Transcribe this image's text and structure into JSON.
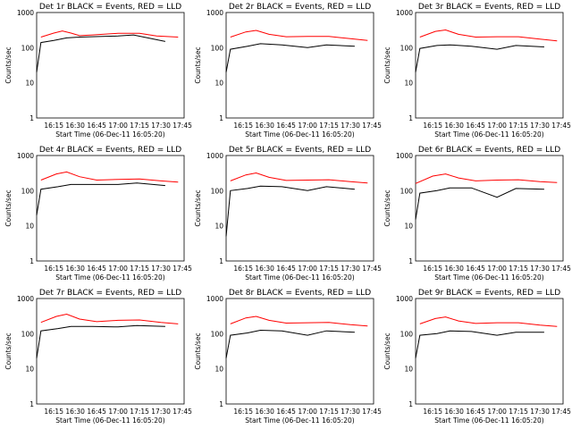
{
  "figure": {
    "background": "#ffffff"
  },
  "chart_data": [
    {
      "type": "line",
      "title": "Det 1r BLACK = Events, RED = LLD",
      "xlabel": "Start Time (06-Dec-11 16:05:20)",
      "ylabel": "Counts/sec",
      "x_ticks": [
        "16:15",
        "16:30",
        "16:45",
        "17:00",
        "17:15",
        "17:30",
        "17:45"
      ],
      "y_ticks": [
        "1",
        "10",
        "100",
        "1000"
      ],
      "ylim": [
        1,
        1000
      ],
      "yscale": "log",
      "series": [
        {
          "color": "#ff0000",
          "points": [
            [
              16.1,
              200
            ],
            [
              16.25,
              260
            ],
            [
              16.35,
              300
            ],
            [
              16.45,
              260
            ],
            [
              16.55,
              220
            ],
            [
              16.7,
              230
            ],
            [
              17.0,
              255
            ],
            [
              17.25,
              255
            ],
            [
              17.45,
              215
            ],
            [
              17.7,
              200
            ]
          ]
        },
        {
          "color": "#000000",
          "points": [
            [
              16.05,
              20
            ],
            [
              16.1,
              140
            ],
            [
              16.25,
              160
            ],
            [
              16.4,
              190
            ],
            [
              16.55,
              200
            ],
            [
              17.0,
              215
            ],
            [
              17.18,
              230
            ],
            [
              17.55,
              150
            ]
          ]
        }
      ]
    },
    {
      "type": "line",
      "title": "Det 2r BLACK = Events, RED = LLD",
      "xlabel": "Start Time (06-Dec-11 16:05:20)",
      "ylabel": "Counts/sec",
      "x_ticks": [
        "16:15",
        "16:30",
        "16:45",
        "17:00",
        "17:15",
        "17:30",
        "17:45"
      ],
      "y_ticks": [
        "1",
        "10",
        "100",
        "1000"
      ],
      "ylim": [
        1,
        1000
      ],
      "yscale": "log",
      "series": [
        {
          "color": "#ff0000",
          "points": [
            [
              16.1,
              200
            ],
            [
              16.28,
              280
            ],
            [
              16.4,
              310
            ],
            [
              16.55,
              240
            ],
            [
              16.75,
              205
            ],
            [
              17.0,
              210
            ],
            [
              17.25,
              210
            ],
            [
              17.5,
              180
            ],
            [
              17.7,
              160
            ]
          ]
        },
        {
          "color": "#000000",
          "points": [
            [
              16.05,
              20
            ],
            [
              16.1,
              90
            ],
            [
              16.3,
              110
            ],
            [
              16.45,
              130
            ],
            [
              16.7,
              120
            ],
            [
              17.0,
              100
            ],
            [
              17.22,
              120
            ],
            [
              17.55,
              110
            ]
          ]
        }
      ]
    },
    {
      "type": "line",
      "title": "Det 3r BLACK = Events, RED = LLD",
      "xlabel": "Start Time (06-Dec-11 16:05:20)",
      "ylabel": "Counts/sec",
      "x_ticks": [
        "16:15",
        "16:30",
        "16:45",
        "17:00",
        "17:15",
        "17:30",
        "17:45"
      ],
      "y_ticks": [
        "1",
        "10",
        "100",
        "1000"
      ],
      "ylim": [
        1,
        1000
      ],
      "yscale": "log",
      "series": [
        {
          "color": "#ff0000",
          "points": [
            [
              16.1,
              200
            ],
            [
              16.28,
              290
            ],
            [
              16.4,
              320
            ],
            [
              16.55,
              240
            ],
            [
              16.75,
              200
            ],
            [
              17.0,
              205
            ],
            [
              17.25,
              205
            ],
            [
              17.5,
              175
            ],
            [
              17.7,
              155
            ]
          ]
        },
        {
          "color": "#000000",
          "points": [
            [
              16.05,
              20
            ],
            [
              16.1,
              95
            ],
            [
              16.3,
              115
            ],
            [
              16.45,
              120
            ],
            [
              16.7,
              110
            ],
            [
              17.0,
              90
            ],
            [
              17.22,
              115
            ],
            [
              17.55,
              105
            ]
          ]
        }
      ]
    },
    {
      "type": "line",
      "title": "Det 4r BLACK = Events, RED = LLD",
      "xlabel": "Start Time (06-Dec-11 16:05:20)",
      "ylabel": "Counts/sec",
      "x_ticks": [
        "16:15",
        "16:30",
        "16:45",
        "17:00",
        "17:15",
        "17:30",
        "17:45"
      ],
      "y_ticks": [
        "1",
        "10",
        "100",
        "1000"
      ],
      "ylim": [
        1,
        1000
      ],
      "yscale": "log",
      "series": [
        {
          "color": "#ff0000",
          "points": [
            [
              16.1,
              200
            ],
            [
              16.28,
              300
            ],
            [
              16.4,
              340
            ],
            [
              16.55,
              250
            ],
            [
              16.75,
              200
            ],
            [
              17.0,
              210
            ],
            [
              17.25,
              215
            ],
            [
              17.5,
              190
            ],
            [
              17.7,
              175
            ]
          ]
        },
        {
          "color": "#000000",
          "points": [
            [
              16.05,
              20
            ],
            [
              16.1,
              110
            ],
            [
              16.3,
              130
            ],
            [
              16.45,
              150
            ],
            [
              16.7,
              150
            ],
            [
              17.0,
              150
            ],
            [
              17.22,
              165
            ],
            [
              17.55,
              140
            ]
          ]
        }
      ]
    },
    {
      "type": "line",
      "title": "Det 5r BLACK = Events, RED = LLD",
      "xlabel": "Start Time (06-Dec-11 16:05:20)",
      "ylabel": "Counts/sec",
      "x_ticks": [
        "16:15",
        "16:30",
        "16:45",
        "17:00",
        "17:15",
        "17:30",
        "17:45"
      ],
      "y_ticks": [
        "1",
        "10",
        "100",
        "1000"
      ],
      "ylim": [
        1,
        1000
      ],
      "yscale": "log",
      "series": [
        {
          "color": "#ff0000",
          "points": [
            [
              16.1,
              190
            ],
            [
              16.28,
              280
            ],
            [
              16.4,
              320
            ],
            [
              16.55,
              240
            ],
            [
              16.75,
              195
            ],
            [
              17.0,
              200
            ],
            [
              17.25,
              205
            ],
            [
              17.5,
              180
            ],
            [
              17.7,
              165
            ]
          ]
        },
        {
          "color": "#000000",
          "points": [
            [
              16.05,
              5
            ],
            [
              16.1,
              100
            ],
            [
              16.3,
              115
            ],
            [
              16.45,
              135
            ],
            [
              16.7,
              130
            ],
            [
              17.0,
              100
            ],
            [
              17.22,
              130
            ],
            [
              17.55,
              110
            ]
          ]
        }
      ]
    },
    {
      "type": "line",
      "title": "Det 6r BLACK = Events, RED = LLD",
      "xlabel": "Start Time (06-Dec-11 16:05:20)",
      "ylabel": "Counts/sec",
      "x_ticks": [
        "16:15",
        "16:30",
        "16:45",
        "17:00",
        "17:15",
        "17:30",
        "17:45"
      ],
      "y_ticks": [
        "1",
        "10",
        "100",
        "1000"
      ],
      "ylim": [
        1,
        1000
      ],
      "yscale": "log",
      "series": [
        {
          "color": "#ff0000",
          "points": [
            [
              16.05,
              160
            ],
            [
              16.25,
              260
            ],
            [
              16.4,
              300
            ],
            [
              16.55,
              230
            ],
            [
              16.75,
              190
            ],
            [
              17.0,
              200
            ],
            [
              17.25,
              205
            ],
            [
              17.5,
              180
            ],
            [
              17.7,
              170
            ]
          ]
        },
        {
          "color": "#000000",
          "points": [
            [
              16.05,
              15
            ],
            [
              16.1,
              85
            ],
            [
              16.3,
              100
            ],
            [
              16.45,
              120
            ],
            [
              16.7,
              120
            ],
            [
              17.0,
              65
            ],
            [
              17.22,
              115
            ],
            [
              17.55,
              110
            ]
          ]
        }
      ]
    },
    {
      "type": "line",
      "title": "Det 7r BLACK = Events, RED = LLD",
      "xlabel": "Start Time (06-Dec-11 16:05:20)",
      "ylabel": "Counts/sec",
      "x_ticks": [
        "16:15",
        "16:30",
        "16:45",
        "17:00",
        "17:15",
        "17:30",
        "17:45"
      ],
      "y_ticks": [
        "1",
        "10",
        "100",
        "1000"
      ],
      "ylim": [
        1,
        1000
      ],
      "yscale": "log",
      "series": [
        {
          "color": "#ff0000",
          "points": [
            [
              16.1,
              210
            ],
            [
              16.28,
              310
            ],
            [
              16.4,
              360
            ],
            [
              16.55,
              260
            ],
            [
              16.75,
              220
            ],
            [
              17.0,
              240
            ],
            [
              17.25,
              245
            ],
            [
              17.5,
              210
            ],
            [
              17.7,
              190
            ]
          ]
        },
        {
          "color": "#000000",
          "points": [
            [
              16.05,
              20
            ],
            [
              16.1,
              120
            ],
            [
              16.3,
              140
            ],
            [
              16.45,
              160
            ],
            [
              16.7,
              160
            ],
            [
              17.0,
              155
            ],
            [
              17.22,
              170
            ],
            [
              17.55,
              160
            ]
          ]
        }
      ]
    },
    {
      "type": "line",
      "title": "Det 8r BLACK = Events, RED = LLD",
      "xlabel": "Start Time (06-Dec-11 16:05:20)",
      "ylabel": "Counts/sec",
      "x_ticks": [
        "16:15",
        "16:30",
        "16:45",
        "17:00",
        "17:15",
        "17:30",
        "17:45"
      ],
      "y_ticks": [
        "1",
        "10",
        "100",
        "1000"
      ],
      "ylim": [
        1,
        1000
      ],
      "yscale": "log",
      "series": [
        {
          "color": "#ff0000",
          "points": [
            [
              16.1,
              190
            ],
            [
              16.28,
              280
            ],
            [
              16.4,
              310
            ],
            [
              16.55,
              240
            ],
            [
              16.75,
              200
            ],
            [
              17.0,
              205
            ],
            [
              17.25,
              210
            ],
            [
              17.5,
              180
            ],
            [
              17.7,
              165
            ]
          ]
        },
        {
          "color": "#000000",
          "points": [
            [
              16.05,
              20
            ],
            [
              16.1,
              90
            ],
            [
              16.3,
              105
            ],
            [
              16.45,
              125
            ],
            [
              16.7,
              120
            ],
            [
              17.0,
              90
            ],
            [
              17.22,
              120
            ],
            [
              17.55,
              110
            ]
          ]
        }
      ]
    },
    {
      "type": "line",
      "title": "Det 9r BLACK = Events, RED = LLD",
      "xlabel": "Start Time (06-Dec-11 16:05:20)",
      "ylabel": "Counts/sec",
      "x_ticks": [
        "16:15",
        "16:30",
        "16:45",
        "17:00",
        "17:15",
        "17:30",
        "17:45"
      ],
      "y_ticks": [
        "1",
        "10",
        "100",
        "1000"
      ],
      "ylim": [
        1,
        1000
      ],
      "yscale": "log",
      "series": [
        {
          "color": "#ff0000",
          "points": [
            [
              16.1,
              190
            ],
            [
              16.28,
              270
            ],
            [
              16.4,
              300
            ],
            [
              16.55,
              230
            ],
            [
              16.75,
              195
            ],
            [
              17.0,
              205
            ],
            [
              17.25,
              205
            ],
            [
              17.5,
              175
            ],
            [
              17.7,
              160
            ]
          ]
        },
        {
          "color": "#000000",
          "points": [
            [
              16.05,
              20
            ],
            [
              16.1,
              90
            ],
            [
              16.3,
              100
            ],
            [
              16.45,
              120
            ],
            [
              16.7,
              115
            ],
            [
              17.0,
              90
            ],
            [
              17.22,
              110
            ],
            [
              17.55,
              110
            ]
          ]
        }
      ]
    }
  ]
}
